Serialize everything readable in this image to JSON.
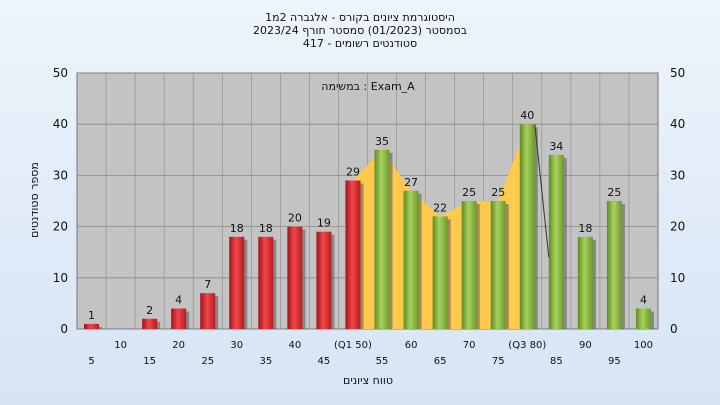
{
  "chart_data": {
    "type": "bar",
    "title_lines": [
      "היסטוגרמת ציונים בקורס - אלגברה 2מ1",
      "בסמסטר  (01/2023)  סמסטר חורף 2023/24",
      "סטודנטים רשומים - 417"
    ],
    "annotation": "במשימה : Exam_A",
    "xlabel": "טווח ציונים",
    "ylabel": "מספר סטודנטים",
    "ylim": [
      0,
      50
    ],
    "yticks": [
      0,
      10,
      20,
      30,
      40,
      50
    ],
    "grid": true,
    "categories": [
      "5",
      "10",
      "15",
      "20",
      "25",
      "30",
      "35",
      "40",
      "45",
      "(Q1 50)",
      "55",
      "60",
      "65",
      "70",
      "75",
      "(Q3 80)",
      "85",
      "90",
      "95",
      "100"
    ],
    "values": [
      1,
      0,
      2,
      4,
      7,
      18,
      18,
      20,
      19,
      29,
      35,
      27,
      22,
      25,
      25,
      40,
      34,
      18,
      25,
      4
    ],
    "value_labels": [
      "1",
      "",
      "2",
      "4",
      "7",
      "18",
      "18",
      "20",
      "19",
      "29",
      "35",
      "27",
      "22",
      "25",
      "25",
      "40",
      "34",
      "18",
      "25",
      "4"
    ],
    "bar_groups": [
      "red",
      "red",
      "red",
      "red",
      "red",
      "red",
      "red",
      "red",
      "red",
      "red",
      "green",
      "green",
      "green",
      "green",
      "green",
      "green",
      "green",
      "green",
      "green",
      "green"
    ],
    "band_values": [
      29,
      35,
      27,
      22,
      25,
      25,
      40
    ],
    "band_start_index": 9,
    "colors": {
      "red": "#e8383b",
      "green": "#8fc04a",
      "band": "#ffc94d",
      "plot_bg": "#c3c3c3"
    }
  }
}
